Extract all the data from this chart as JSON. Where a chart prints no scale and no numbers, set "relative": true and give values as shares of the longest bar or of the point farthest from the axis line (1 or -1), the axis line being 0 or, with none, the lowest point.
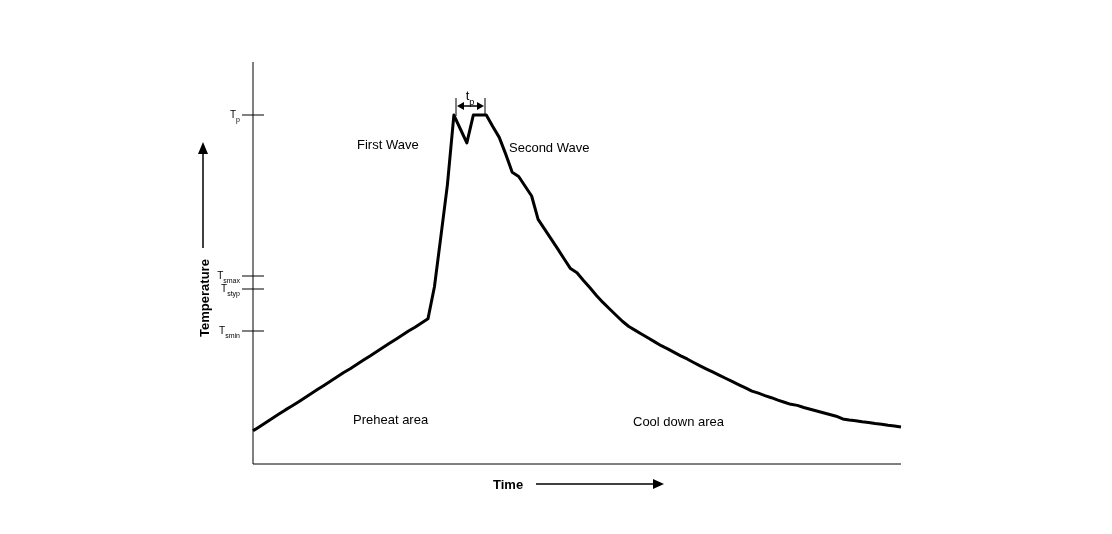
{
  "chart_data": {
    "type": "line",
    "relative": true,
    "xlabel": "Time",
    "ylabel": "Temperature",
    "categories": [
      null,
      null,
      null,
      null,
      null,
      null,
      null,
      null,
      null,
      null,
      null,
      null,
      null,
      null,
      null,
      null,
      null,
      null,
      null,
      null,
      null,
      null,
      null,
      null,
      null,
      null,
      null,
      null,
      null,
      null,
      null,
      null,
      null,
      null,
      null,
      null,
      null,
      null,
      null,
      null,
      null,
      null,
      null,
      null,
      null,
      null,
      null,
      null,
      null,
      null,
      null,
      null,
      null,
      null,
      null,
      null,
      null,
      null,
      null,
      null,
      null,
      null,
      null,
      null,
      null,
      null,
      null,
      null,
      null,
      null,
      null,
      null,
      null,
      null,
      null,
      null,
      null,
      null,
      null,
      null,
      null,
      null,
      null,
      null,
      null,
      null,
      null,
      null,
      null,
      null,
      null,
      null,
      null,
      null,
      null,
      null,
      null,
      null,
      null,
      null,
      null
    ],
    "values": [
      0.095,
      0.107,
      0.119,
      0.131,
      0.143,
      0.155,
      0.166,
      0.178,
      0.19,
      0.202,
      0.214,
      0.226,
      0.238,
      0.25,
      0.262,
      0.273,
      0.285,
      0.297,
      0.309,
      0.321,
      0.333,
      0.345,
      0.357,
      0.369,
      0.381,
      0.392,
      0.404,
      0.416,
      0.508,
      0.653,
      0.8,
      1,
      0.96,
      0.92,
      1,
      1,
      1,
      0.967,
      0.936,
      0.888,
      0.836,
      0.824,
      0.796,
      0.768,
      0.701,
      0.673,
      0.645,
      0.617,
      0.588,
      0.56,
      0.548,
      0.526,
      0.505,
      0.483,
      0.463,
      0.445,
      0.427,
      0.409,
      0.394,
      0.383,
      0.372,
      0.361,
      0.35,
      0.339,
      0.33,
      0.32,
      0.31,
      0.301,
      0.291,
      0.281,
      0.272,
      0.263,
      0.254,
      0.245,
      0.236,
      0.227,
      0.218,
      0.209,
      0.203,
      0.196,
      0.19,
      0.183,
      0.177,
      0.171,
      0.168,
      0.162,
      0.157,
      0.152,
      0.147,
      0.142,
      0.137,
      0.129,
      0.126,
      0.124,
      0.121,
      0.119,
      0.116,
      0.114,
      0.111,
      0.109,
      0.106
    ],
    "color": "#000000",
    "marker": "none",
    "line_style": "solid",
    "annotations": [
      "T$_{p}$",
      "T$_{smax}$",
      "T$_{styp}$",
      "T$_{smin}$",
      "t$_{p}$",
      "First Wave",
      "Second Wave",
      "Preheat area",
      "Cool down area"
    ]
  }
}
